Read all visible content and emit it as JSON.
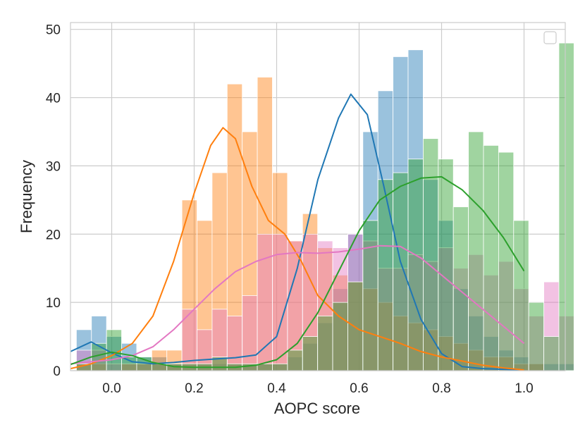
{
  "chart_data": {
    "type": "histogram",
    "xlabel": "AOPC score",
    "ylabel": "Frequency",
    "xlim": [
      -0.1,
      1.1
    ],
    "ylim": [
      0,
      51
    ],
    "x_ticks": [
      "0.0",
      "0.2",
      "0.4",
      "0.6",
      "0.8",
      "1.0"
    ],
    "y_ticks": [
      "0",
      "10",
      "20",
      "30",
      "40",
      "50"
    ],
    "grid": true,
    "legend": "top-right (empty)",
    "bin_start": -0.0857,
    "bin_width": 0.03657,
    "series": [
      {
        "color": "#1f77b4",
        "counts": [
          6,
          8,
          5,
          4,
          2,
          2,
          1,
          1,
          1,
          1,
          1,
          1,
          1,
          1,
          2,
          4,
          7,
          12,
          20,
          35,
          41,
          46,
          47,
          28,
          22,
          12,
          8,
          5,
          3,
          2,
          1,
          1,
          1
        ],
        "kde": [
          [
            -0.1,
            2.8
          ],
          [
            -0.05,
            4.2
          ],
          [
            0.0,
            2.6
          ],
          [
            0.05,
            1.3
          ],
          [
            0.1,
            1.0
          ],
          [
            0.15,
            1.2
          ],
          [
            0.2,
            1.5
          ],
          [
            0.25,
            1.7
          ],
          [
            0.3,
            1.9
          ],
          [
            0.35,
            2.3
          ],
          [
            0.4,
            5.0
          ],
          [
            0.45,
            15.0
          ],
          [
            0.5,
            28.0
          ],
          [
            0.55,
            37.0
          ],
          [
            0.58,
            40.5
          ],
          [
            0.62,
            37.5
          ],
          [
            0.66,
            27.0
          ],
          [
            0.7,
            16.0
          ],
          [
            0.75,
            7.5
          ],
          [
            0.8,
            2.5
          ],
          [
            0.85,
            0.6
          ],
          [
            0.9,
            0.3
          ],
          [
            0.95,
            0.2
          ],
          [
            1.0,
            0.1
          ]
        ]
      },
      {
        "color": "#ff7f0e",
        "counts": [
          1,
          1,
          0,
          1,
          1,
          3,
          3,
          25,
          22,
          29,
          42,
          35,
          43,
          29,
          19,
          23,
          18,
          14,
          13,
          12,
          10,
          8,
          7,
          6,
          5,
          4,
          3,
          2,
          2,
          1,
          1,
          0,
          0
        ],
        "kde": [
          [
            -0.1,
            0.3
          ],
          [
            -0.05,
            1.0
          ],
          [
            0.0,
            2.2
          ],
          [
            0.05,
            4.0
          ],
          [
            0.1,
            8.0
          ],
          [
            0.15,
            16.0
          ],
          [
            0.2,
            26.0
          ],
          [
            0.24,
            33.0
          ],
          [
            0.27,
            35.6
          ],
          [
            0.3,
            34.0
          ],
          [
            0.34,
            27.0
          ],
          [
            0.38,
            22.0
          ],
          [
            0.42,
            20.0
          ],
          [
            0.46,
            16.0
          ],
          [
            0.5,
            11.0
          ],
          [
            0.55,
            8.0
          ],
          [
            0.6,
            6.0
          ],
          [
            0.65,
            5.0
          ],
          [
            0.7,
            4.0
          ],
          [
            0.75,
            2.8
          ],
          [
            0.8,
            2.0
          ],
          [
            0.85,
            1.4
          ],
          [
            0.9,
            0.8
          ],
          [
            0.95,
            0.4
          ],
          [
            1.0,
            0.1
          ]
        ]
      },
      {
        "color": "#e377c2",
        "counts": [
          3,
          3,
          1,
          1,
          1,
          1,
          1,
          9,
          6,
          9,
          8,
          11,
          20,
          20,
          19,
          20,
          19,
          18,
          20,
          19,
          15,
          15,
          17,
          16,
          18,
          15,
          17,
          14,
          16,
          12,
          8,
          13,
          8
        ],
        "kde": [
          [
            -0.1,
            1.0
          ],
          [
            -0.05,
            1.3
          ],
          [
            0.0,
            1.6
          ],
          [
            0.05,
            2.2
          ],
          [
            0.1,
            3.5
          ],
          [
            0.15,
            6.0
          ],
          [
            0.2,
            9.0
          ],
          [
            0.25,
            12.0
          ],
          [
            0.3,
            14.5
          ],
          [
            0.35,
            16.0
          ],
          [
            0.4,
            17.0
          ],
          [
            0.45,
            17.3
          ],
          [
            0.5,
            17.2
          ],
          [
            0.55,
            17.4
          ],
          [
            0.6,
            17.8
          ],
          [
            0.65,
            18.3
          ],
          [
            0.7,
            18.2
          ],
          [
            0.75,
            16.5
          ],
          [
            0.8,
            14.0
          ],
          [
            0.85,
            11.5
          ],
          [
            0.9,
            9.0
          ],
          [
            0.95,
            6.5
          ],
          [
            1.0,
            4.0
          ]
        ]
      },
      {
        "color": "#2ca02c",
        "counts": [
          1,
          4,
          6,
          2,
          2,
          1,
          1,
          1,
          1,
          2,
          1,
          1,
          1,
          1,
          3,
          5,
          8,
          10,
          13,
          22,
          28,
          29,
          31,
          34,
          31,
          24,
          35,
          33,
          32,
          22,
          10,
          5,
          48
        ],
        "kde": [
          [
            -0.1,
            0.9
          ],
          [
            -0.05,
            2.0
          ],
          [
            0.0,
            2.7
          ],
          [
            0.05,
            2.2
          ],
          [
            0.1,
            1.2
          ],
          [
            0.15,
            0.6
          ],
          [
            0.2,
            0.5
          ],
          [
            0.25,
            0.5
          ],
          [
            0.3,
            0.5
          ],
          [
            0.35,
            0.8
          ],
          [
            0.4,
            1.6
          ],
          [
            0.45,
            4.0
          ],
          [
            0.5,
            8.5
          ],
          [
            0.55,
            14.5
          ],
          [
            0.6,
            20.5
          ],
          [
            0.65,
            25.0
          ],
          [
            0.7,
            27.0
          ],
          [
            0.75,
            28.2
          ],
          [
            0.8,
            28.4
          ],
          [
            0.85,
            26.5
          ],
          [
            0.9,
            23.5
          ],
          [
            0.95,
            19.5
          ],
          [
            1.0,
            14.6
          ]
        ]
      }
    ]
  }
}
